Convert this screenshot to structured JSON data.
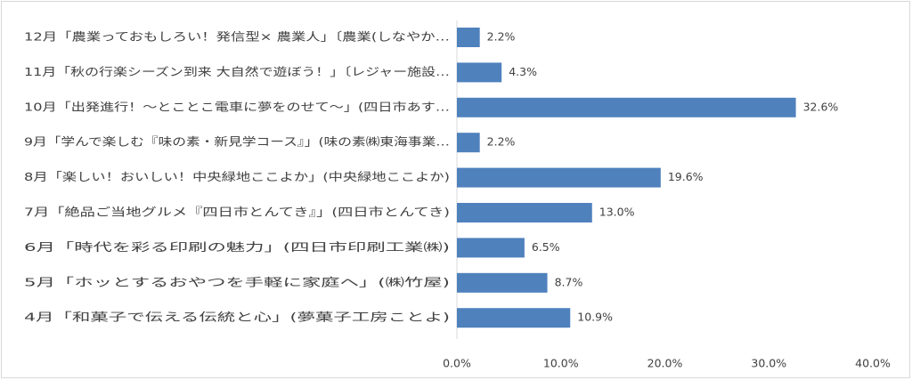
{
  "chart_data": {
    "type": "bar",
    "orientation": "horizontal",
    "categories": [
      "12月「農業っておもしろい！発信型× 農業人」〔農業(しなやか…",
      "11月「秋の行楽シーズン到来 大自然で遊ぼう！」〔レジャー施設…",
      "10月「出発進行！～とことこ電車に夢をのせて～」(四日市あす…",
      "9月「学んで楽しむ『味の素・新見学コース』」(味の素㈱東海事業…",
      "8月「楽しい！おいしい！中央緑地ここよか」(中央緑地ここよか)",
      "7月「絶品ご当地グルメ『四日市とんてき』」(四日市とんてき)",
      "6月「時代を彩る印刷の魅力」(四日市印刷工業㈱)",
      "5月「ホッとするおやつを手軽に家庭へ」(㈱竹屋)",
      "4月「和菓子で伝える伝統と心」(夢菓子工房ことよ)"
    ],
    "values": [
      2.2,
      4.3,
      32.6,
      2.2,
      19.6,
      13.0,
      6.5,
      8.7,
      10.9
    ],
    "value_labels": [
      "2.2%",
      "4.3%",
      "32.6%",
      "2.2%",
      "19.6%",
      "13.0%",
      "6.5%",
      "8.7%",
      "10.9%"
    ],
    "xlim": [
      0,
      40
    ],
    "x_ticks": [
      0,
      10,
      20,
      30,
      40
    ],
    "x_tick_labels": [
      "0.0%",
      "10.0%",
      "20.0%",
      "30.0%",
      "40.0%"
    ],
    "grid": false,
    "legend": "none",
    "title": "",
    "xlabel": "",
    "ylabel": "",
    "bar_color": "#4f81bd"
  }
}
